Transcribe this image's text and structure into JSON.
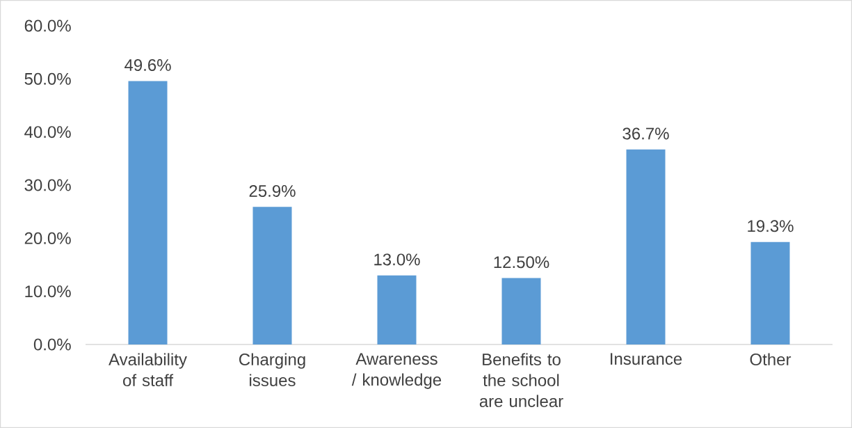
{
  "chart_data": {
    "type": "bar",
    "categories": [
      "Availability of staff",
      "Charging issues",
      "Awareness / knowledge",
      "Benefits to the school are unclear",
      "Insurance",
      "Other"
    ],
    "values": [
      49.6,
      25.9,
      13.0,
      12.5,
      36.7,
      19.3
    ],
    "value_labels": [
      "49.6%",
      "25.9%",
      "13.0%",
      "12.50%",
      "36.7%",
      "19.3%"
    ],
    "color": "#5b9bd5",
    "ylim": [
      0,
      60
    ],
    "yticks": [
      {
        "value": 0,
        "label": "0.0%"
      },
      {
        "value": 10,
        "label": "10.0%"
      },
      {
        "value": 20,
        "label": "20.0%"
      },
      {
        "value": 30,
        "label": "30.0%"
      },
      {
        "value": 40,
        "label": "40.0%"
      },
      {
        "value": 50,
        "label": "50.0%"
      },
      {
        "value": 60,
        "label": "60.0%"
      }
    ]
  }
}
